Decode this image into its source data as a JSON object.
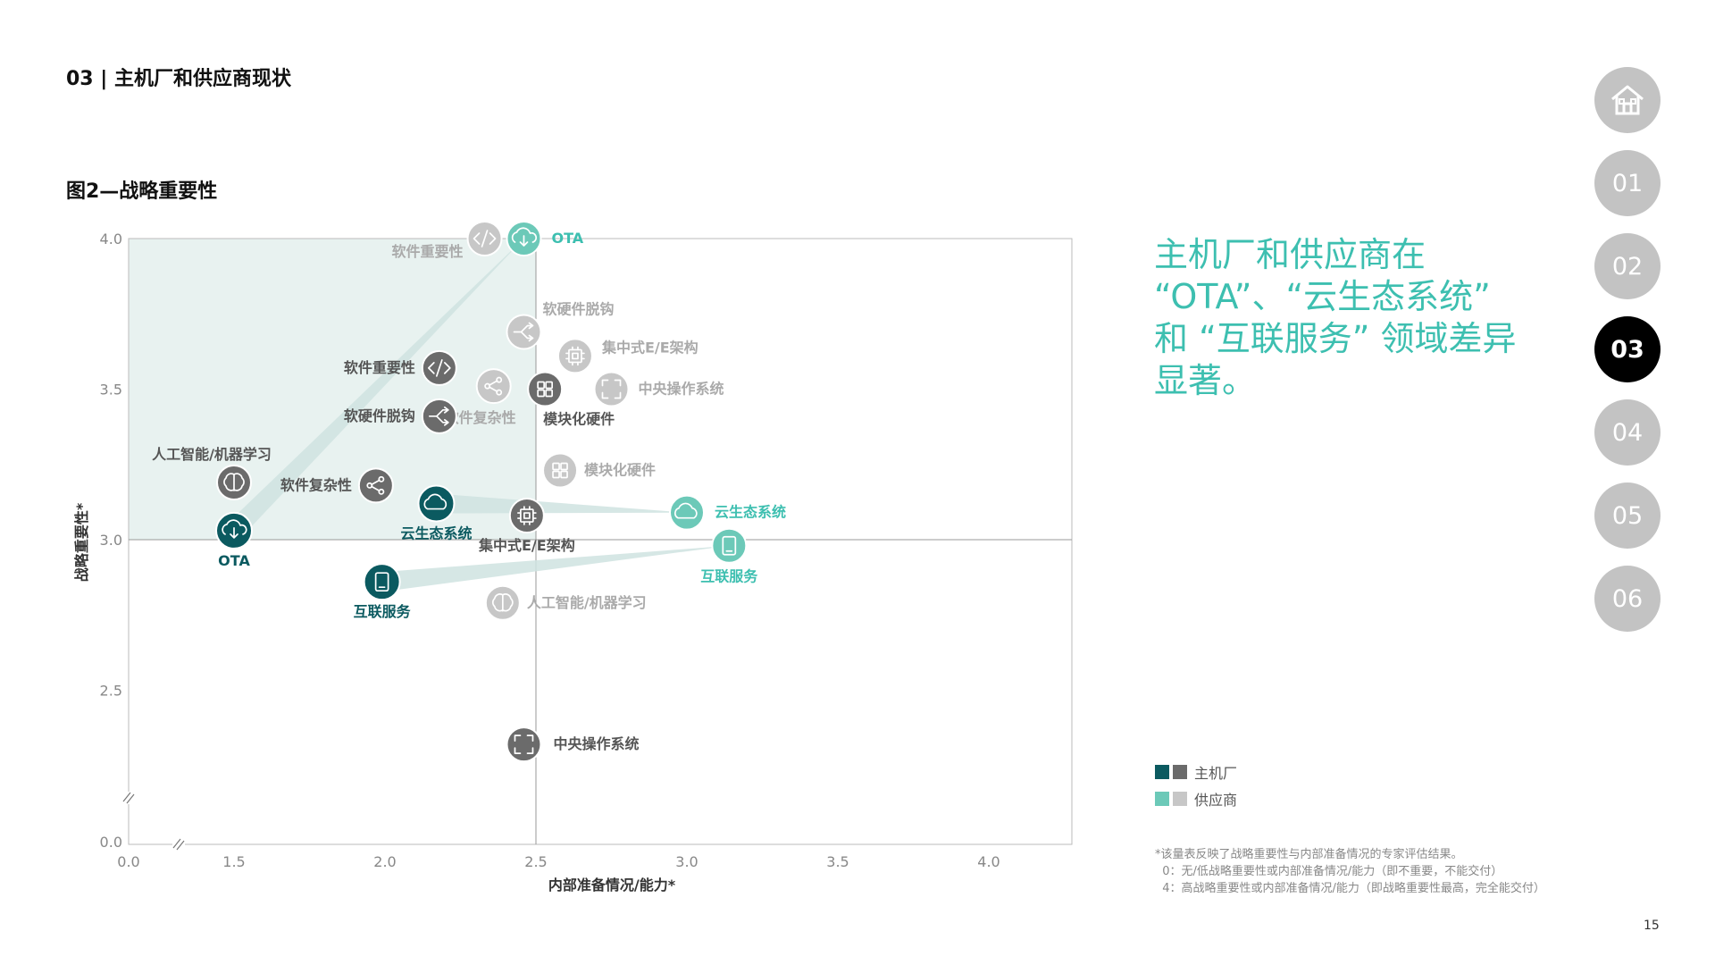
{
  "header": {
    "section_title": "03 | 主机厂和供应商现状"
  },
  "figure": {
    "title": "图2—战略重要性"
  },
  "headline": {
    "lines": [
      "主机厂和供应商在",
      "“OTA”、“云生态系统”",
      "和 “互联服务” 领域差异",
      "显著。"
    ]
  },
  "nav": {
    "items": [
      {
        "label": "",
        "icon": "home-icon",
        "active": false
      },
      {
        "label": "01",
        "active": false
      },
      {
        "label": "02",
        "active": false
      },
      {
        "label": "03",
        "active": true
      },
      {
        "label": "04",
        "active": false
      },
      {
        "label": "05",
        "active": false
      },
      {
        "label": "06",
        "active": false
      }
    ]
  },
  "legend": {
    "oem_label": "主机厂",
    "supplier_label": "供应商"
  },
  "colors": {
    "oem_dark_teal": "#0b5a60",
    "oem_gray": "#6b6b6b",
    "supplier_teal": "#6cc9b8",
    "supplier_gray": "#c7c7c7",
    "quadrant_fill": "#e8f2f0",
    "headline": "#3dbfb0"
  },
  "footnote": {
    "lines": [
      "*该量表反映了战略重要性与内部准备情况的专家评估结果。",
      "  0：无/低战略重要性或内部准备情况/能力（即不重要，不能交付）",
      "  4：高战略重要性或内部准备情况/能力（即战略重要性最高，完全能交付）"
    ]
  },
  "page_number": "15",
  "chart_data": {
    "type": "scatter",
    "title": "",
    "xlabel": "内部准备情况/能力*",
    "ylabel": "战略重要性*",
    "x_ticks": [
      "0.0",
      "1.5",
      "2.0",
      "2.5",
      "3.0",
      "3.5",
      "4.0"
    ],
    "y_ticks": [
      "4.0",
      "3.5",
      "3.0",
      "2.5",
      "0.0"
    ],
    "xlim": [
      0,
      4
    ],
    "ylim": [
      0,
      4
    ],
    "axis_breaks": true,
    "quadrant_divider": {
      "x": 2.5,
      "y": 3.0
    },
    "highlighted_quadrant": "top-left",
    "series": [
      {
        "name": "主机厂",
        "points": [
          {
            "label": "OTA",
            "x": 1.5,
            "y": 3.03,
            "icon": "cloud-download-icon",
            "highlight": true
          },
          {
            "label": "云生态系统",
            "x": 2.17,
            "y": 3.12,
            "icon": "cloud-icon",
            "highlight": true
          },
          {
            "label": "互联服务",
            "x": 1.99,
            "y": 2.86,
            "icon": "tablet-icon",
            "highlight": true
          },
          {
            "label": "人工智能/机器学习",
            "x": 1.5,
            "y": 3.19,
            "icon": "brain-icon",
            "highlight": false
          },
          {
            "label": "软件复杂性",
            "x": 1.97,
            "y": 3.18,
            "icon": "share-icon",
            "highlight": false
          },
          {
            "label": "软件重要性",
            "x": 2.18,
            "y": 3.57,
            "icon": "code-icon",
            "highlight": false
          },
          {
            "label": "软硬件脱钩",
            "x": 2.18,
            "y": 3.41,
            "icon": "split-icon",
            "highlight": false
          },
          {
            "label": "模块化硬件",
            "x": 2.53,
            "y": 3.5,
            "icon": "grid-icon",
            "highlight": false
          },
          {
            "label": "集中式E/E架构",
            "x": 2.47,
            "y": 3.08,
            "icon": "chip-icon",
            "highlight": false
          },
          {
            "label": "中央操作系统",
            "x": 2.46,
            "y": 2.32,
            "icon": "scan-icon",
            "highlight": false
          }
        ]
      },
      {
        "name": "供应商",
        "points": [
          {
            "label": "OTA",
            "x": 2.46,
            "y": 4.0,
            "icon": "cloud-download-icon",
            "highlight": true
          },
          {
            "label": "云生态系统",
            "x": 3.0,
            "y": 3.09,
            "icon": "cloud-icon",
            "highlight": true
          },
          {
            "label": "互联服务",
            "x": 3.14,
            "y": 2.98,
            "icon": "tablet-icon",
            "highlight": true
          },
          {
            "label": "软件重要性",
            "x": 2.33,
            "y": 4.0,
            "icon": "code-icon",
            "highlight": false
          },
          {
            "label": "软硬件脱钩",
            "x": 2.46,
            "y": 3.69,
            "icon": "split-icon",
            "highlight": false
          },
          {
            "label": "集中式E/E架构",
            "x": 2.63,
            "y": 3.61,
            "icon": "chip-icon",
            "highlight": false
          },
          {
            "label": "软件复杂性",
            "x": 2.36,
            "y": 3.51,
            "icon": "share-icon",
            "highlight": false
          },
          {
            "label": "中央操作系统",
            "x": 2.75,
            "y": 3.5,
            "icon": "scan-icon",
            "highlight": false
          },
          {
            "label": "模块化硬件",
            "x": 2.58,
            "y": 3.23,
            "icon": "grid-icon",
            "highlight": false
          },
          {
            "label": "人工智能/机器学习",
            "x": 2.39,
            "y": 2.79,
            "icon": "brain-icon",
            "highlight": false
          }
        ]
      }
    ]
  }
}
